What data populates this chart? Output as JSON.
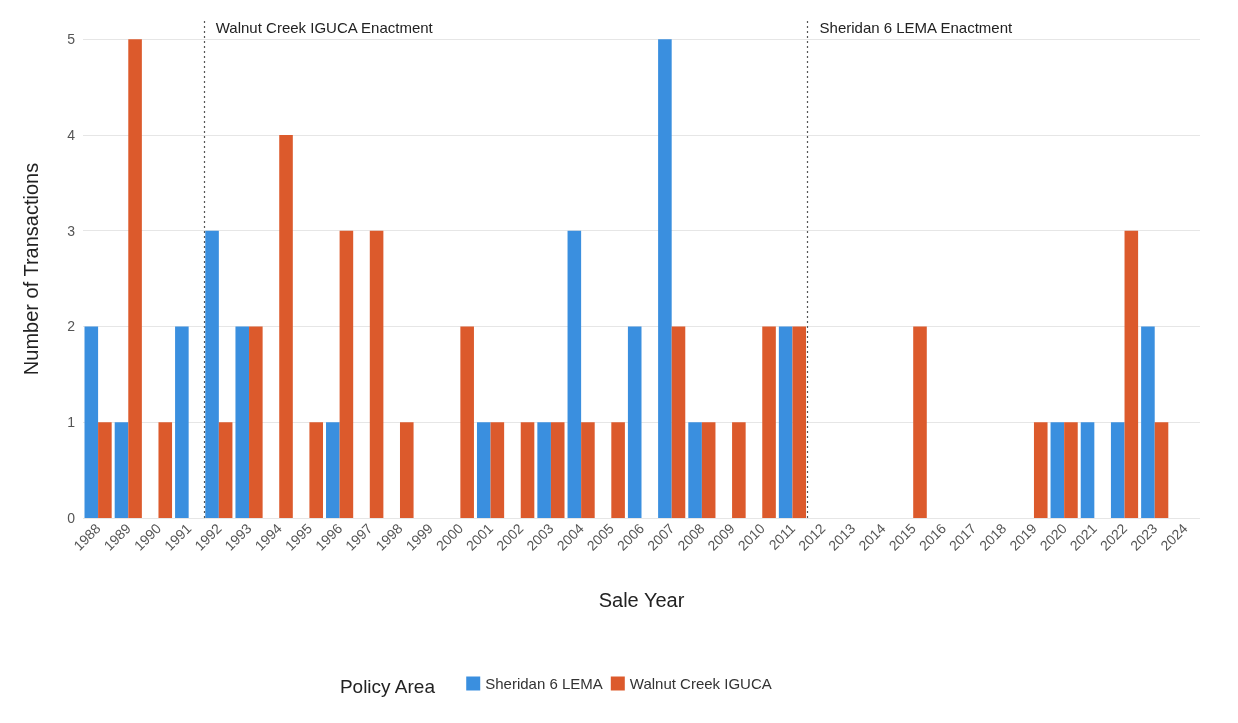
{
  "chart_data": {
    "type": "bar",
    "xlabel": "Sale Year",
    "ylabel": "Number of Transactions",
    "legend_title": "Policy Area",
    "legend": "bottom",
    "grid": "y",
    "x": [
      1988,
      1989,
      1990,
      1991,
      1992,
      1993,
      1994,
      1995,
      1996,
      1997,
      1998,
      1999,
      2000,
      2001,
      2002,
      2003,
      2004,
      2005,
      2006,
      2007,
      2008,
      2009,
      2010,
      2011,
      2012,
      2013,
      2014,
      2015,
      2016,
      2017,
      2018,
      2019,
      2020,
      2021,
      2022,
      2023,
      2024
    ],
    "xlim": [
      1987.5,
      2024.5
    ],
    "xticks": [
      1988,
      1989,
      1990,
      1991,
      1992,
      1993,
      1994,
      1995,
      1996,
      1997,
      1998,
      1999,
      2000,
      2001,
      2002,
      2003,
      2004,
      2005,
      2006,
      2007,
      2008,
      2009,
      2010,
      2011,
      2012,
      2013,
      2014,
      2015,
      2016,
      2017,
      2018,
      2019,
      2020,
      2021,
      2022,
      2023,
      2024
    ],
    "ylim": [
      0,
      5.2
    ],
    "yticks": [
      0,
      1,
      2,
      3,
      4,
      5
    ],
    "series": [
      {
        "name": "Sheridan 6 LEMA",
        "color": "#3a8fdf",
        "values": [
          2,
          1,
          0,
          2,
          3,
          2,
          0,
          0,
          1,
          0,
          0,
          0,
          0,
          1,
          0,
          1,
          3,
          0,
          2,
          5,
          1,
          0,
          0,
          2,
          0,
          0,
          0,
          0,
          0,
          0,
          0,
          0,
          1,
          1,
          1,
          2,
          0
        ]
      },
      {
        "name": "Walnut Creek IGUCA",
        "color": "#dc5a2c",
        "values": [
          1,
          5,
          1,
          0,
          1,
          2,
          4,
          1,
          3,
          3,
          1,
          0,
          2,
          1,
          1,
          1,
          1,
          1,
          0,
          2,
          1,
          1,
          2,
          2,
          0,
          0,
          0,
          2,
          0,
          0,
          0,
          1,
          1,
          0,
          3,
          1,
          0
        ]
      }
    ],
    "ref_lines": [
      {
        "axis": "x",
        "value": 1991.5,
        "label": "Walnut Creek IGUCA Enactment",
        "line_style": "dotted",
        "color": "#555555"
      },
      {
        "axis": "x",
        "value": 2011.5,
        "label": "Sheridan 6 LEMA Enactment",
        "line_style": "dotted",
        "color": "#555555"
      }
    ]
  }
}
